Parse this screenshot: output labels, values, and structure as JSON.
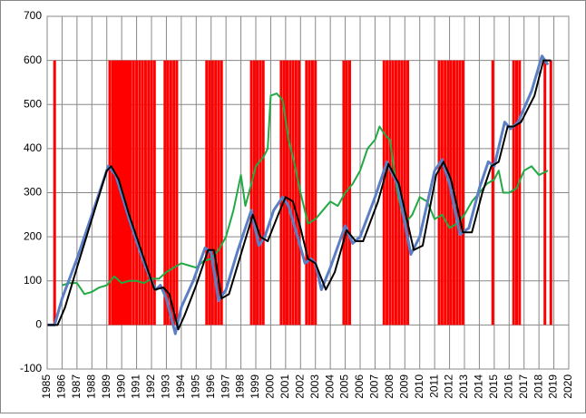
{
  "chart_data": {
    "type": "line",
    "xlim": [
      1985,
      2020
    ],
    "xticks": [
      1985,
      1986,
      1987,
      1988,
      1989,
      1990,
      1991,
      1992,
      1993,
      1994,
      1995,
      1996,
      1997,
      1998,
      1999,
      2000,
      2001,
      2002,
      2003,
      2004,
      2005,
      2006,
      2007,
      2008,
      2009,
      2010,
      2011,
      2012,
      2013,
      2014,
      2015,
      2016,
      2017,
      2018,
      2019,
      2020
    ],
    "ylim": [
      -100,
      700
    ],
    "yticks": [
      -100,
      0,
      100,
      200,
      300,
      400,
      500,
      600,
      700
    ],
    "grid": true,
    "series": [
      {
        "type": "bar",
        "color": "#ff0000",
        "x": [
          1985.5,
          1989.2,
          1989.4,
          1989.55,
          1989.7,
          1989.85,
          1990.0,
          1990.15,
          1990.3,
          1990.45,
          1990.6,
          1990.8,
          1991.0,
          1991.2,
          1991.4,
          1991.6,
          1991.8,
          1992.0,
          1992.2,
          1992.9,
          1993.1,
          1993.3,
          1993.5,
          1993.7,
          1995.7,
          1995.9,
          1996.1,
          1996.3,
          1996.5,
          1996.7,
          1998.7,
          1998.9,
          1999.1,
          1999.3,
          1999.5,
          2000.7,
          2000.9,
          2001.1,
          2001.3,
          2001.5,
          2001.7,
          2001.9,
          2002.4,
          2002.6,
          2002.8,
          2003.0,
          2004.9,
          2005.1,
          2005.3,
          2007.6,
          2007.8,
          2008.0,
          2008.2,
          2008.4,
          2008.6,
          2008.8,
          2009.0,
          2009.2,
          2011.3,
          2011.5,
          2011.7,
          2011.9,
          2012.1,
          2012.3,
          2012.5,
          2012.7,
          2012.9,
          2014.9,
          2016.3,
          2016.5,
          2016.7,
          2018.4,
          2018.8
        ],
        "values": [
          600,
          600,
          600,
          600,
          600,
          600,
          600,
          600,
          600,
          600,
          600,
          600,
          600,
          600,
          600,
          600,
          600,
          600,
          600,
          600,
          600,
          600,
          600,
          600,
          600,
          600,
          600,
          600,
          600,
          600,
          600,
          600,
          600,
          600,
          600,
          600,
          600,
          600,
          600,
          600,
          600,
          600,
          600,
          600,
          600,
          600,
          600,
          600,
          600,
          600,
          600,
          600,
          600,
          600,
          600,
          600,
          600,
          600,
          600,
          600,
          600,
          600,
          600,
          600,
          600,
          600,
          600,
          600,
          600,
          600,
          600,
          600,
          600
        ]
      },
      {
        "type": "line",
        "color": "#22aa44",
        "width": 2,
        "x": [
          1986.0,
          1986.5,
          1987.0,
          1987.3,
          1987.5,
          1988.0,
          1988.5,
          1989.0,
          1989.5,
          1990.0,
          1990.5,
          1991.0,
          1991.5,
          1992.0,
          1992.5,
          1993.0,
          1993.5,
          1994.0,
          1994.5,
          1995.0,
          1995.5,
          1996.0,
          1996.5,
          1997.0,
          1997.5,
          1998.0,
          1998.3,
          1998.7,
          1999.0,
          1999.5,
          1999.8,
          2000.0,
          2000.4,
          2000.8,
          2001.2,
          2001.5,
          2002.0,
          2002.5,
          2003.0,
          2003.5,
          2004.0,
          2004.5,
          2005.0,
          2005.5,
          2006.0,
          2006.5,
          2007.0,
          2007.3,
          2007.7,
          2008.0,
          2008.5,
          2009.0,
          2009.5,
          2010.0,
          2010.5,
          2011.0,
          2011.5,
          2012.0,
          2012.5,
          2013.0,
          2013.5,
          2014.0,
          2014.5,
          2015.0,
          2015.3,
          2015.6,
          2016.0,
          2016.5,
          2017.0,
          2017.5,
          2018.0,
          2018.6
        ],
        "values": [
          90,
          95,
          95,
          80,
          70,
          75,
          85,
          90,
          110,
          95,
          100,
          100,
          95,
          105,
          105,
          120,
          130,
          140,
          135,
          130,
          145,
          150,
          170,
          200,
          260,
          340,
          270,
          320,
          360,
          380,
          400,
          520,
          525,
          510,
          420,
          380,
          300,
          230,
          240,
          260,
          280,
          270,
          300,
          320,
          350,
          400,
          420,
          450,
          430,
          420,
          300,
          230,
          250,
          290,
          280,
          240,
          250,
          220,
          230,
          250,
          280,
          300,
          320,
          330,
          350,
          300,
          300,
          310,
          350,
          360,
          340,
          350
        ]
      },
      {
        "type": "line",
        "color": "#5b7fc4",
        "width": 3,
        "x": [
          1985.0,
          1985.5,
          1986.0,
          1987.0,
          1988.0,
          1989.1,
          1989.6,
          1990.5,
          1991.5,
          1992.0,
          1992.3,
          1992.6,
          1993.0,
          1993.6,
          1994.0,
          1994.8,
          1995.6,
          1996.0,
          1996.5,
          1997.0,
          1997.8,
          1998.7,
          1999.2,
          1999.6,
          2000.2,
          2000.8,
          2001.2,
          2001.8,
          2002.3,
          2002.7,
          2003.0,
          2003.4,
          2004.0,
          2005.0,
          2005.5,
          2006.0,
          2007.0,
          2007.8,
          2008.5,
          2009.4,
          2010.0,
          2011.0,
          2011.5,
          2012.0,
          2012.7,
          2013.3,
          2014.0,
          2014.6,
          2015.0,
          2015.7,
          2016.1,
          2016.6,
          2017.5,
          2018.2,
          2018.6
        ],
        "values": [
          0,
          0,
          60,
          150,
          250,
          360,
          340,
          240,
          140,
          100,
          80,
          90,
          60,
          -20,
          40,
          100,
          175,
          165,
          55,
          80,
          170,
          260,
          180,
          200,
          260,
          290,
          270,
          200,
          140,
          150,
          140,
          80,
          130,
          225,
          185,
          200,
          290,
          370,
          320,
          160,
          200,
          350,
          375,
          320,
          205,
          220,
          310,
          370,
          360,
          460,
          445,
          460,
          530,
          610,
          590
        ]
      },
      {
        "type": "line",
        "color": "#000000",
        "width": 2,
        "x": [
          1985.0,
          1985.7,
          1986.2,
          1987.0,
          1988.0,
          1989.0,
          1989.3,
          1989.8,
          1990.5,
          1991.5,
          1992.2,
          1992.8,
          1993.2,
          1993.8,
          1994.2,
          1995.0,
          1995.8,
          1996.2,
          1996.7,
          1997.2,
          1998.0,
          1998.8,
          1999.3,
          1999.8,
          2000.5,
          2001.0,
          2001.5,
          2002.0,
          2002.5,
          2003.0,
          2003.7,
          2004.3,
          2005.1,
          2005.7,
          2006.2,
          2007.2,
          2007.9,
          2008.6,
          2009.6,
          2010.2,
          2011.1,
          2011.6,
          2012.1,
          2012.9,
          2013.5,
          2014.2,
          2014.8,
          2015.3,
          2015.9,
          2016.3,
          2016.8,
          2017.7,
          2018.3,
          2018.8
        ],
        "values": [
          0,
          0,
          40,
          130,
          240,
          350,
          360,
          330,
          250,
          150,
          80,
          85,
          70,
          -10,
          20,
          90,
          170,
          170,
          60,
          70,
          160,
          250,
          200,
          190,
          250,
          290,
          280,
          220,
          150,
          140,
          80,
          120,
          215,
          190,
          190,
          280,
          365,
          320,
          170,
          180,
          340,
          370,
          330,
          210,
          210,
          300,
          360,
          370,
          450,
          450,
          460,
          520,
          600,
          600
        ]
      }
    ]
  }
}
